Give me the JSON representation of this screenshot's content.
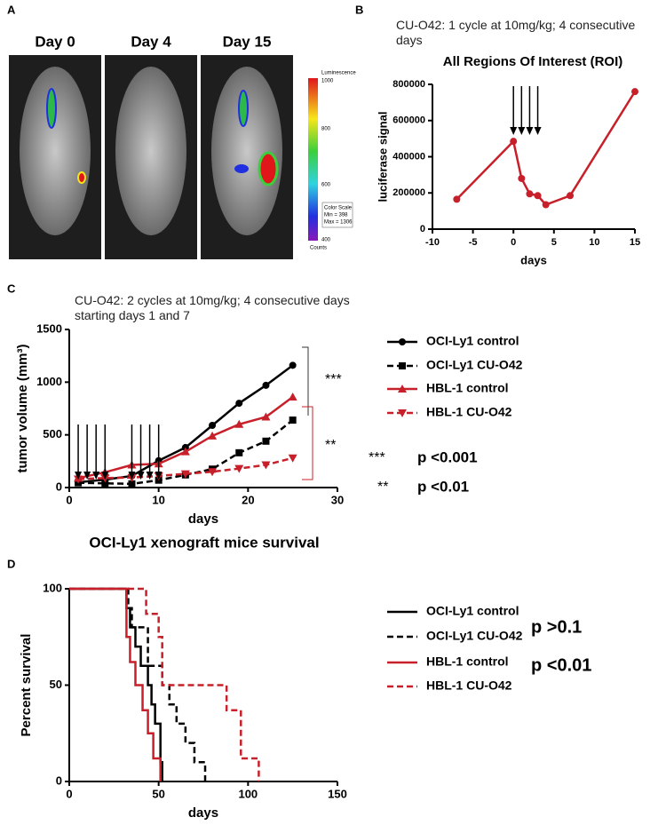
{
  "panel_a": {
    "label": "A",
    "images": [
      "Day 0",
      "Day 4",
      "Day 15"
    ],
    "scale_title": "Luminescence",
    "scale_ticks": [
      "1000",
      "800",
      "600",
      "400"
    ],
    "scale_unit": "Counts",
    "legend": [
      "Color Scale",
      "Min = 398",
      "Max = 1306"
    ]
  },
  "chart_data": [
    {
      "type": "line",
      "panel": "B",
      "subtitle": "CU-O42: 1 cycle at 10mg/kg; 4 consecutive days",
      "title": "All Regions Of Interest (ROI)",
      "xlabel": "days",
      "ylabel": "luciferase signal",
      "x": [
        -7,
        0,
        1,
        2,
        3,
        4,
        7,
        15
      ],
      "values": [
        165000,
        485000,
        280000,
        195000,
        185000,
        135000,
        185000,
        760000
      ],
      "color": "#c8202a",
      "marker": "circle",
      "xlim": [
        -10,
        15
      ],
      "xticks": [
        -10,
        -5,
        0,
        5,
        10,
        15
      ],
      "ylim": [
        0,
        800000
      ],
      "yticks": [
        0,
        200000,
        400000,
        600000,
        800000
      ],
      "arrows": [
        0,
        1,
        2,
        3
      ]
    },
    {
      "type": "line",
      "panel": "C",
      "subtitle": "CU-O42: 2 cycles at 10mg/kg; 4 consecutive days starting days 1 and 7",
      "xlabel": "days",
      "ylabel": "tumor volume (mm³)",
      "x": [
        1,
        4,
        7,
        10,
        13,
        16,
        19,
        22,
        25
      ],
      "series": [
        {
          "name": "OCI-Ly1 control",
          "color": "#000000",
          "marker": "circle",
          "dash": false,
          "values": [
            50,
            75,
            110,
            255,
            380,
            590,
            800,
            970,
            1160
          ]
        },
        {
          "name": "OCI-Ly1 CU-O42",
          "color": "#000000",
          "marker": "square",
          "dash": true,
          "values": [
            45,
            40,
            35,
            70,
            120,
            175,
            330,
            440,
            640
          ]
        },
        {
          "name": "HBL-1 control",
          "color": "#c8202a",
          "marker": "triangle-up",
          "dash": false,
          "values": [
            90,
            145,
            215,
            225,
            340,
            490,
            600,
            670,
            860
          ]
        },
        {
          "name": "HBL-1 CU-O42",
          "color": "#c8202a",
          "marker": "triangle-down",
          "dash": true,
          "values": [
            80,
            90,
            95,
            110,
            130,
            150,
            180,
            215,
            280
          ]
        }
      ],
      "xlim": [
        0,
        30
      ],
      "xticks": [
        0,
        10,
        20,
        30
      ],
      "ylim": [
        0,
        1500
      ],
      "yticks": [
        0,
        500,
        1000,
        1500
      ],
      "arrows": [
        1,
        2,
        3,
        4,
        7,
        8,
        9,
        10
      ],
      "annotations": [
        "***",
        "**",
        "***",
        "p <0.001",
        "**",
        "p <0.01"
      ]
    },
    {
      "type": "step",
      "panel": "D",
      "title": "OCI-Ly1 xenograft mice survival",
      "xlabel": "days",
      "ylabel": "Percent survival",
      "series": [
        {
          "name": "OCI-Ly1 control",
          "color": "#000000",
          "dash": false,
          "x": [
            0,
            32,
            34,
            37,
            40,
            44,
            46,
            48,
            51,
            52
          ],
          "values": [
            100,
            90,
            80,
            70,
            60,
            50,
            40,
            30,
            10,
            0
          ]
        },
        {
          "name": "OCI-Ly1 CU-O42",
          "color": "#000000",
          "dash": true,
          "x": [
            0,
            33,
            35,
            44,
            52,
            56,
            60,
            65,
            70,
            76
          ],
          "values": [
            100,
            90,
            80,
            60,
            50,
            40,
            30,
            20,
            10,
            0
          ]
        },
        {
          "name": "HBL-1 control",
          "color": "#c8202a",
          "dash": false,
          "x": [
            0,
            32,
            34,
            37,
            41,
            44,
            47,
            51
          ],
          "values": [
            100,
            75,
            62,
            50,
            37,
            25,
            12,
            0
          ]
        },
        {
          "name": "HBL-1 CU-O42",
          "color": "#c8202a",
          "dash": true,
          "x": [
            0,
            43,
            50,
            52,
            88,
            96,
            106
          ],
          "values": [
            100,
            87,
            75,
            50,
            37,
            12,
            0
          ]
        }
      ],
      "xlim": [
        0,
        150
      ],
      "xticks": [
        0,
        50,
        100,
        150
      ],
      "ylim": [
        0,
        100
      ],
      "yticks": [
        0,
        50,
        100
      ],
      "annotations": [
        "p >0.1",
        "p <0.01"
      ]
    }
  ]
}
